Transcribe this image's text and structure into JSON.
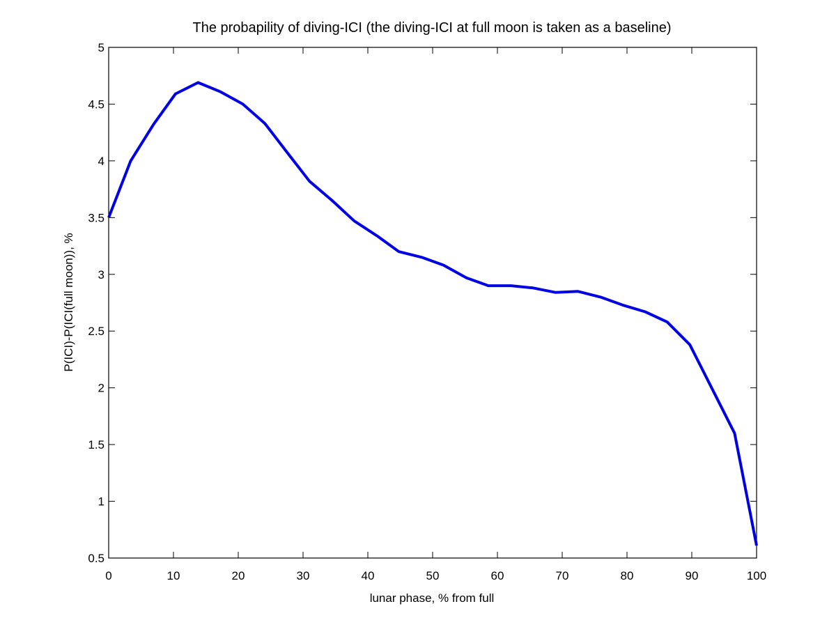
{
  "chart_data": {
    "type": "line",
    "title": "The probapility of diving-ICI (the diving-ICI at full moon is taken as a baseline)",
    "xlabel": "lunar phase, % from full",
    "ylabel": "P(ICI)-P(ICI(full moon)), %",
    "xlim": [
      0,
      100
    ],
    "ylim": [
      0.5,
      5
    ],
    "xticks": [
      0,
      10,
      20,
      30,
      40,
      50,
      60,
      70,
      80,
      90,
      100
    ],
    "yticks": [
      0.5,
      1,
      1.5,
      2,
      2.5,
      3,
      3.5,
      4,
      4.5,
      5
    ],
    "xtick_labels": [
      "0",
      "10",
      "20",
      "30",
      "40",
      "50",
      "60",
      "70",
      "80",
      "90",
      "100"
    ],
    "ytick_labels": [
      "0.5",
      "1",
      "1.5",
      "2",
      "2.5",
      "3",
      "3.5",
      "4",
      "4.5",
      "5"
    ],
    "grid": false,
    "series": [
      {
        "name": "P(ICI)-P(ICI(full moon))",
        "color": "#0000e6",
        "x": [
          0,
          3.4,
          6.9,
          10.3,
          13.8,
          17.2,
          20.7,
          24.1,
          27.6,
          31.0,
          34.5,
          37.9,
          41.4,
          44.8,
          48.3,
          51.7,
          55.2,
          58.6,
          62.1,
          65.5,
          69.0,
          72.4,
          75.9,
          79.3,
          82.8,
          86.2,
          89.7,
          96.6,
          100
        ],
        "y": [
          3.5,
          4.0,
          4.32,
          4.59,
          4.69,
          4.61,
          4.5,
          4.33,
          4.07,
          3.82,
          3.65,
          3.47,
          3.34,
          3.2,
          3.15,
          3.08,
          2.97,
          2.9,
          2.9,
          2.88,
          2.84,
          2.85,
          2.8,
          2.73,
          2.67,
          2.58,
          2.38,
          1.6,
          0.61
        ]
      }
    ]
  }
}
